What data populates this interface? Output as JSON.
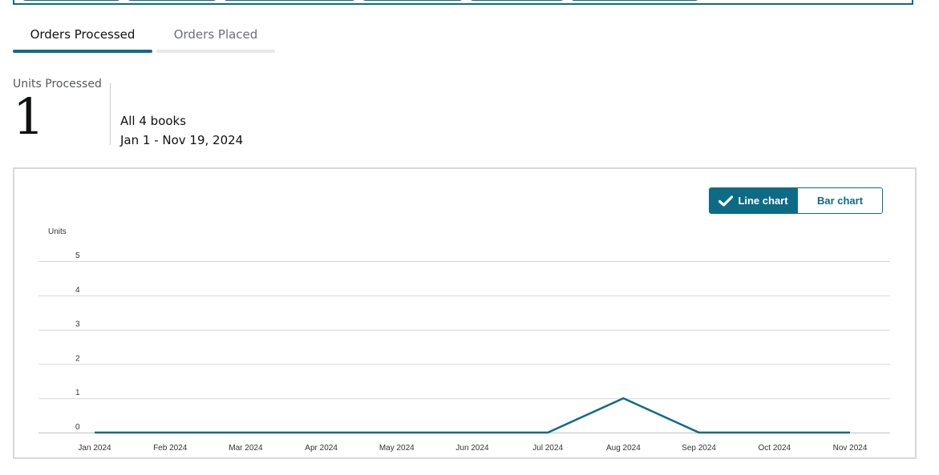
{
  "tabs": [
    {
      "label": "Orders Processed",
      "active": true
    },
    {
      "label": "Orders Placed",
      "active": false
    }
  ],
  "metric": {
    "label": "Units Processed",
    "value": "1",
    "scope": "All 4 books",
    "date_range": "Jan 1 - Nov 19, 2024"
  },
  "chart_toggle": {
    "line_label": "Line chart",
    "bar_label": "Bar chart",
    "selected": "line",
    "check_icon": "check-icon"
  },
  "colors": {
    "accent": "#0e6b86",
    "gridline": "#d5d9d9",
    "panel_border": "#d5d9d9"
  },
  "chart_data": {
    "type": "line",
    "title": "",
    "xlabel": "",
    "ylabel": "Units",
    "ylim": [
      0,
      5
    ],
    "yticks": [
      "0",
      "1",
      "2",
      "3",
      "4",
      "5"
    ],
    "categories": [
      "Jan 2024",
      "Feb 2024",
      "Mar 2024",
      "Apr 2024",
      "May 2024",
      "Jun 2024",
      "Jul 2024",
      "Aug 2024",
      "Sep 2024",
      "Oct 2024",
      "Nov 2024"
    ],
    "series": [
      {
        "values": [
          0,
          0,
          0,
          0,
          0,
          0,
          0,
          1,
          0,
          0,
          0
        ],
        "color": "#0e6b86"
      }
    ],
    "grid": true,
    "legend": "none"
  }
}
